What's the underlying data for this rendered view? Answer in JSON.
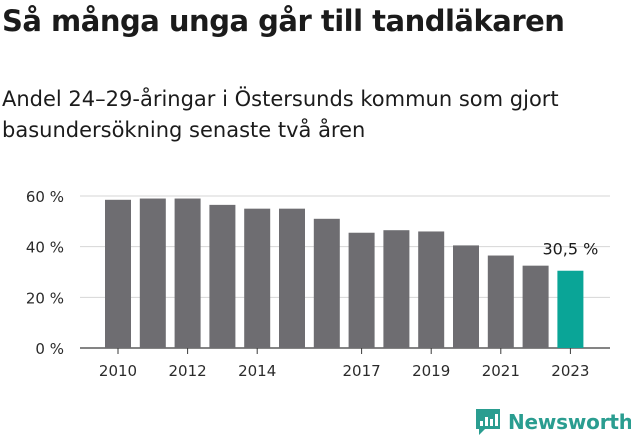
{
  "title": "Så många unga går till tandläkaren",
  "subtitle": "Andel 24–29-åringar i Östersunds kommun som gjort basundersökning senaste två åren",
  "brand": {
    "name": "Newsworthy",
    "icon": "newsworthy-logo-icon",
    "color": "#2a9d90"
  },
  "chart_data": {
    "type": "bar",
    "categories": [
      "2010",
      "2011",
      "2012",
      "2013",
      "2014",
      "2015",
      "2016",
      "2017",
      "2018",
      "2019",
      "2020",
      "2021",
      "2022",
      "2023"
    ],
    "values": [
      58.5,
      59,
      59,
      56.5,
      55,
      55,
      51,
      45.5,
      46.5,
      46,
      40.5,
      36.5,
      32.5,
      30.5
    ],
    "x_tick_labels": [
      "2010",
      "2012",
      "2014",
      "2017",
      "2019",
      "2021",
      "2023"
    ],
    "y_ticks": [
      0,
      20,
      40,
      60
    ],
    "y_tick_labels": [
      "0 %",
      "20 %",
      "40 %",
      "60 %"
    ],
    "ylim": [
      0,
      60
    ],
    "xlabel": "",
    "ylabel": "",
    "grid": true,
    "bar_color": "#6e6d71",
    "highlight_color": "#0aa597",
    "highlight_index": 13,
    "data_label": {
      "index": 13,
      "text": "30,5 %"
    }
  }
}
